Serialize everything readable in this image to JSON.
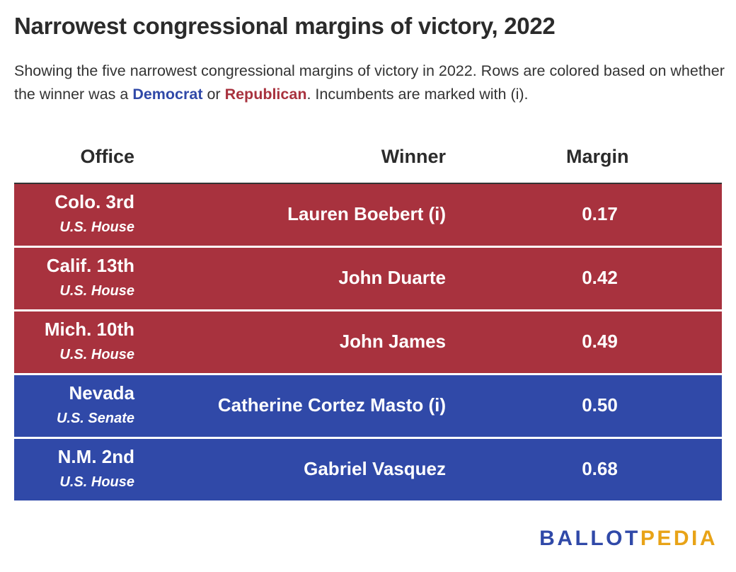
{
  "title": "Narrowest congressional margins of victory, 2022",
  "subtitle": {
    "part1": "Showing the five narrowest congressional margins of victory in 2022. Rows are colored based on whether the winner was a ",
    "dem_word": "Democrat",
    "part2": " or ",
    "rep_word": "Republican",
    "part3": ". Incumbents are marked with (i)."
  },
  "chart_data": {
    "type": "table",
    "columns": [
      "Office",
      "Winner",
      "Margin"
    ],
    "rows": [
      {
        "office": "Colo. 3rd",
        "chamber": "U.S. House",
        "winner": "Lauren Boebert (i)",
        "margin": "0.17",
        "party": "Republican"
      },
      {
        "office": "Calif. 13th",
        "chamber": "U.S. House",
        "winner": "John Duarte",
        "margin": "0.42",
        "party": "Republican"
      },
      {
        "office": "Mich. 10th",
        "chamber": "U.S. House",
        "winner": "John James",
        "margin": "0.49",
        "party": "Republican"
      },
      {
        "office": "Nevada",
        "chamber": "U.S. Senate",
        "winner": "Catherine Cortez Masto (i)",
        "margin": "0.50",
        "party": "Democrat"
      },
      {
        "office": "N.M. 2nd",
        "chamber": "U.S. House",
        "winner": "Gabriel Vasquez",
        "margin": "0.68",
        "party": "Democrat"
      }
    ]
  },
  "colors": {
    "democrat": "#3049a8",
    "republican": "#a8323e",
    "logo_accent": "#e8a317"
  },
  "logo": {
    "part1": "BALLOT",
    "part2": "PEDIA"
  }
}
